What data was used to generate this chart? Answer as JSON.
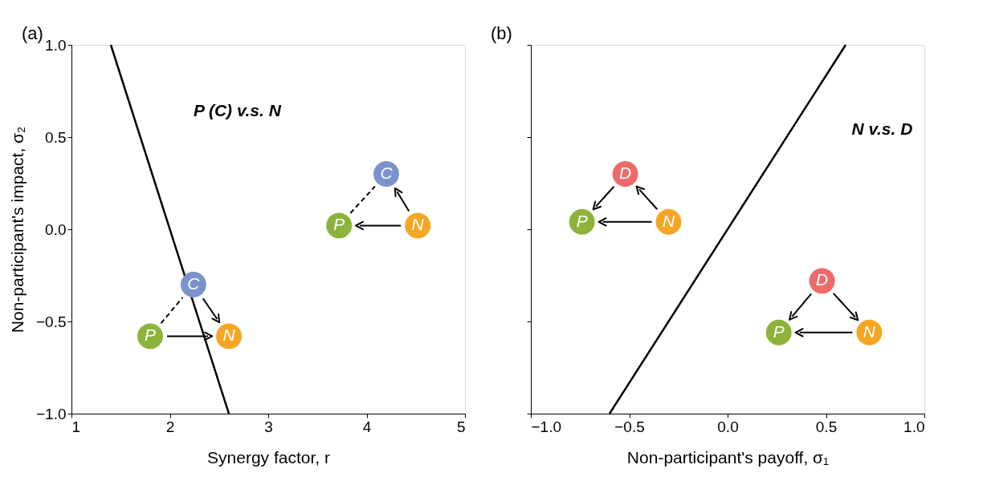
{
  "chart_data": [
    {
      "type": "line",
      "xlabel": "Synergy factor, r",
      "ylabel": "Non-participant's impact, σ₂",
      "series": [
        {
          "color": "#000000",
          "x": [
            1.4,
            2.6
          ],
          "values": [
            1.0,
            -1.0
          ]
        }
      ],
      "xlim": [
        1,
        5
      ],
      "xticks": [
        1,
        2,
        3,
        4,
        5
      ],
      "ylim": [
        -1,
        1
      ],
      "yticks": [
        {
          "value": -1,
          "label": "−1.0"
        },
        {
          "value": -0.5,
          "label": "−0.5"
        },
        {
          "value": 0,
          "label": "0.0"
        },
        {
          "value": 0.5,
          "label": "0.5"
        },
        {
          "value": 1,
          "label": "1.0"
        }
      ],
      "grid": false,
      "annotations": [
        "(a)",
        "P (C) v.s. N",
        "C",
        "P",
        "N",
        "C",
        "P",
        "N"
      ]
    },
    {
      "type": "line",
      "xlabel": "Non-participant's payoff, σ₁",
      "series": [
        {
          "color": "#000000",
          "x": [
            -0.6,
            0.6
          ],
          "values": [
            -1.0,
            1.0
          ]
        }
      ],
      "xlim": [
        -1,
        1
      ],
      "xticks": [
        {
          "value": -1,
          "label": "−1.0"
        },
        {
          "value": -0.5,
          "label": "−0.5"
        },
        {
          "value": 0,
          "label": "0.0"
        },
        {
          "value": 0.5,
          "label": "0.5"
        },
        {
          "value": 1,
          "label": "1.0"
        }
      ],
      "ylim": [
        -1,
        1
      ],
      "yticks": [
        {
          "value": -1,
          "label": null
        },
        {
          "value": -0.5,
          "label": null
        },
        {
          "value": 0,
          "label": null
        },
        {
          "value": 0.5,
          "label": null
        },
        {
          "value": 1,
          "label": null
        }
      ],
      "grid": false,
      "tick_labels": "x",
      "annotations": [
        "(b)",
        "N v.s. D",
        "D",
        "P",
        "N",
        "D",
        "P",
        "N"
      ]
    }
  ]
}
